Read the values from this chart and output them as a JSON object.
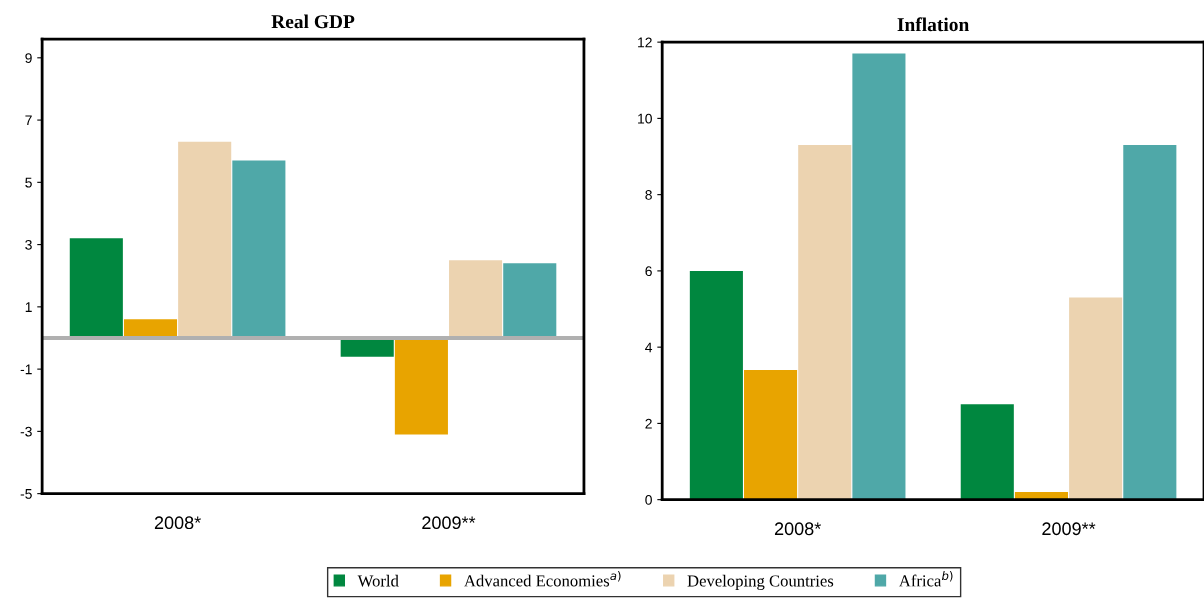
{
  "chart_data": [
    {
      "type": "bar",
      "title": "Real GDP",
      "categories": [
        "2008*",
        "2009**"
      ],
      "series": [
        {
          "name": "World",
          "color": "#00873f",
          "values": [
            3.2,
            -0.6
          ]
        },
        {
          "name": "Advanced Economies$^{a)}$",
          "color": "#e8a400",
          "values": [
            0.6,
            -3.1
          ]
        },
        {
          "name": "Developing Countries",
          "color": "#ecd3b0",
          "values": [
            6.3,
            2.5
          ]
        },
        {
          "name": "Africa$^{b)}$",
          "color": "#4fa8a8",
          "values": [
            5.7,
            2.4
          ]
        }
      ],
      "ylim": [
        -5,
        9.6
      ],
      "yticks": [
        -5,
        -3,
        -1,
        1,
        3,
        5,
        7,
        9
      ],
      "grid": false,
      "legend": "bottom"
    },
    {
      "type": "bar",
      "title": "Inflation",
      "categories": [
        "2008*",
        "2009**"
      ],
      "series": [
        {
          "name": "World",
          "color": "#00873f",
          "values": [
            6.0,
            2.5
          ]
        },
        {
          "name": "Advanced Economies$^{a)}$",
          "color": "#e8a400",
          "values": [
            3.4,
            0.2
          ]
        },
        {
          "name": "Developing Countries",
          "color": "#ecd3b0",
          "values": [
            9.3,
            5.3
          ]
        },
        {
          "name": "Africa$^{b)}$",
          "color": "#4fa8a8",
          "values": [
            11.7,
            9.3
          ]
        }
      ],
      "ylim": [
        0,
        12
      ],
      "yticks": [
        0,
        2,
        4,
        6,
        8,
        10,
        12
      ],
      "grid": false,
      "legend": "bottom"
    }
  ]
}
